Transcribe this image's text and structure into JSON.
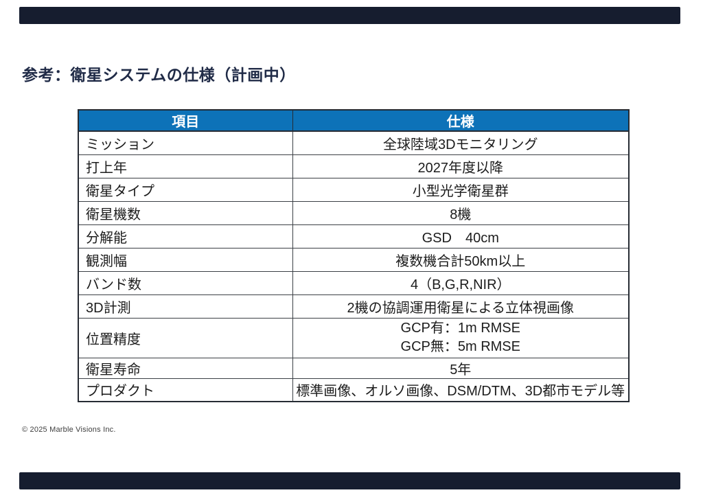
{
  "page": {
    "title": "参考：衛星システムの仕様（計画中）",
    "copyright": "© 2025 Marble Visions Inc."
  },
  "colors": {
    "accent_bar": "#161d2f",
    "title_text": "#202b47",
    "table_header_bg": "#0d72b8",
    "table_header_text": "#ffffff",
    "table_border": "#3a3e44",
    "cell_text": "#1c1c1c"
  },
  "table": {
    "headers": [
      "項目",
      "仕様"
    ],
    "rows": [
      {
        "item": "ミッション",
        "spec": "全球陸域3Dモニタリング"
      },
      {
        "item": "打上年",
        "spec": "2027年度以降"
      },
      {
        "item": "衛星タイプ",
        "spec": "小型光学衛星群"
      },
      {
        "item": "衛星機数",
        "spec": "8機"
      },
      {
        "item": "分解能",
        "spec": "GSD　40cm"
      },
      {
        "item": "観測幅",
        "spec": "複数機合計50km以上"
      },
      {
        "item": "バンド数",
        "spec": "4（B,G,R,NIR）"
      },
      {
        "item": "3D計測",
        "spec": "2機の協調運用衛星による立体視画像"
      },
      {
        "item": "位置精度",
        "spec_lines": [
          "GCP有：1m RMSE",
          "GCP無：5m RMSE"
        ]
      },
      {
        "item": "衛星寿命",
        "spec": "5年"
      },
      {
        "item": "プロダクト",
        "spec": "標準画像、オルソ画像、DSM/DTM、3D都市モデル等"
      }
    ]
  }
}
